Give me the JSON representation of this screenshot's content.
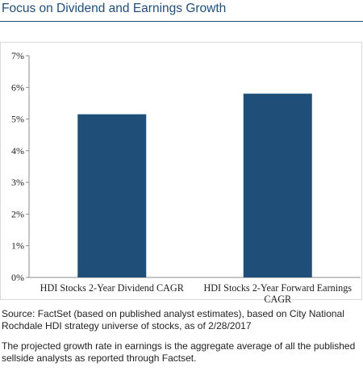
{
  "title": "Focus on Dividend and Earnings Growth",
  "chart_data": {
    "type": "bar",
    "categories": [
      [
        "HDI Stocks 2-Year Dividend CAGR"
      ],
      [
        "HDI Stocks 2-Year Forward Earnings",
        "CAGR"
      ]
    ],
    "values": [
      5.15,
      5.8
    ],
    "ylim": [
      0,
      7
    ],
    "yticks": [
      "0%",
      "1%",
      "2%",
      "3%",
      "4%",
      "5%",
      "6%",
      "7%"
    ],
    "bar_color": "#1f4e79",
    "grid": false,
    "legend": "none"
  },
  "footnotes": {
    "source": "Source: FactSet (based on published analyst estimates), based on City National Rochdale HDI strategy universe of stocks, as of 2/28/2017",
    "note": "The projected growth rate in earnings is the aggregate average of all the published sellside analysts as reported through Factset."
  }
}
